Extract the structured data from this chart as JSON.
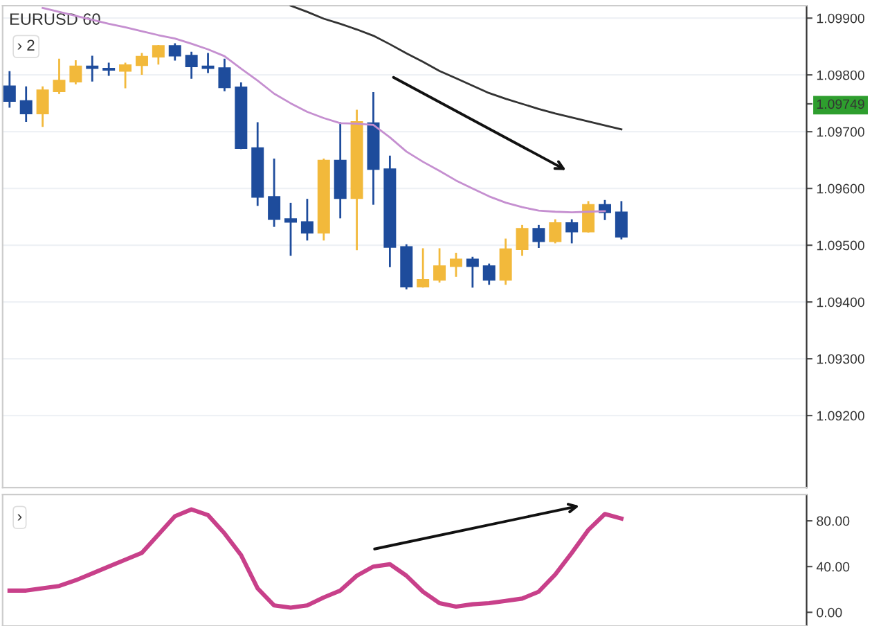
{
  "chart_data": [
    {
      "type": "candlestick",
      "title": "EURUSD 60",
      "categories": [
        null,
        null,
        null,
        null,
        null,
        null,
        null,
        null,
        null,
        null,
        null,
        null,
        null,
        null,
        null,
        null,
        null,
        null,
        null,
        null,
        null,
        null,
        null,
        null,
        null,
        null,
        null,
        null,
        null,
        null,
        null,
        null,
        null,
        null,
        null,
        null,
        null,
        null
      ],
      "ohlc": [
        [
          1.0978,
          1.09805,
          1.09744,
          1.09754
        ],
        [
          1.09754,
          1.09778,
          1.09719,
          1.09732
        ],
        [
          1.09732,
          1.09778,
          1.0971,
          1.09773
        ],
        [
          1.09771,
          1.09827,
          1.09768,
          1.0979
        ],
        [
          1.09788,
          1.09824,
          1.09785,
          1.09815
        ],
        [
          1.09815,
          1.09832,
          1.0979,
          1.09812
        ],
        [
          1.09811,
          1.0982,
          1.098,
          1.09809
        ],
        [
          1.09807,
          1.0982,
          1.09778,
          1.09817
        ],
        [
          1.09817,
          1.09837,
          1.09802,
          1.09832
        ],
        [
          1.09832,
          1.09851,
          1.0982,
          1.09851
        ],
        [
          1.09851,
          1.09854,
          1.09827,
          1.09834
        ],
        [
          1.09834,
          1.09839,
          1.09795,
          1.09815
        ],
        [
          1.09815,
          1.09837,
          1.09805,
          1.09812
        ],
        [
          1.09812,
          1.09827,
          1.09773,
          1.09778
        ],
        [
          1.09778,
          1.09785,
          1.09671,
          1.09671
        ],
        [
          1.09671,
          1.09715,
          1.09571,
          1.09585
        ],
        [
          1.09585,
          1.09651,
          1.09534,
          1.09546
        ],
        [
          1.09546,
          1.09573,
          1.09483,
          1.09541
        ],
        [
          1.09541,
          1.0958,
          1.0951,
          1.09522
        ],
        [
          1.09522,
          1.09651,
          1.0951,
          1.09649
        ],
        [
          1.09649,
          1.09715,
          1.09549,
          1.09583
        ],
        [
          1.09583,
          1.09737,
          1.09493,
          1.09717
        ],
        [
          1.09715,
          1.09768,
          1.09573,
          1.09634
        ],
        [
          1.09634,
          1.09656,
          1.09463,
          1.09497
        ],
        [
          1.09497,
          1.095,
          1.09424,
          1.09427
        ],
        [
          1.09427,
          1.09493,
          1.09427,
          1.09439
        ],
        [
          1.09439,
          1.09493,
          1.09436,
          1.09463
        ],
        [
          1.09463,
          1.09485,
          1.09446,
          1.09475
        ],
        [
          1.09475,
          1.09478,
          1.09427,
          1.09463
        ],
        [
          1.09463,
          1.09466,
          1.09432,
          1.09439
        ],
        [
          1.09439,
          1.0951,
          1.09432,
          1.09493
        ],
        [
          1.09493,
          1.09534,
          1.09483,
          1.09529
        ],
        [
          1.09529,
          1.09534,
          1.09497,
          1.09507
        ],
        [
          1.09507,
          1.09544,
          1.09505,
          1.09539
        ],
        [
          1.09539,
          1.09544,
          1.09505,
          1.09524
        ],
        [
          1.09524,
          1.09576,
          1.09524,
          1.09571
        ],
        [
          1.09571,
          1.09578,
          1.09546,
          1.09558
        ],
        [
          1.09558,
          1.09576,
          1.09512,
          1.09515
        ]
      ],
      "colors": [
        "#1e4c9c",
        "#1e4c9c",
        "#f2b93b",
        "#f2b93b",
        "#f2b93b",
        "#1e4c9c",
        "#1e4c9c",
        "#f2b93b",
        "#f2b93b",
        "#f2b93b",
        "#1e4c9c",
        "#1e4c9c",
        "#1e4c9c",
        "#1e4c9c",
        "#1e4c9c",
        "#1e4c9c",
        "#1e4c9c",
        "#1e4c9c",
        "#1e4c9c",
        "#f2b93b",
        "#1e4c9c",
        "#f2b93b",
        "#1e4c9c",
        "#1e4c9c",
        "#1e4c9c",
        "#f2b93b",
        "#f2b93b",
        "#f2b93b",
        "#1e4c9c",
        "#1e4c9c",
        "#f2b93b",
        "#f2b93b",
        "#1e4c9c",
        "#f2b93b",
        "#1e4c9c",
        "#f2b93b",
        "#1e4c9c",
        "#1e4c9c"
      ],
      "ylim": [
        1.09073,
        1.09922
      ],
      "yticks": [
        {
          "value": 1.092,
          "label": "1.09200"
        },
        {
          "value": 1.093,
          "label": "1.09300"
        },
        {
          "value": 1.094,
          "label": "1.09400"
        },
        {
          "value": 1.095,
          "label": "1.09500"
        },
        {
          "value": 1.096,
          "label": "1.09600"
        },
        {
          "value": 1.097,
          "label": "1.09700"
        },
        {
          "value": 1.09749,
          "label": "1.09749"
        },
        {
          "value": 1.098,
          "label": "1.09800"
        },
        {
          "value": 1.099,
          "label": "1.09900"
        }
      ],
      "annotations": [
        "› 2"
      ],
      "grid": "y",
      "tick_labels": "y",
      "series": [
        {
          "type": "line",
          "color": "#c58fd0",
          "values": [
            null,
            null,
            1.09918,
            1.09911,
            1.09904,
            1.09897,
            1.0989,
            1.09884,
            1.09877,
            1.0987,
            1.09864,
            1.09855,
            1.09845,
            1.09833,
            1.09811,
            1.0979,
            1.09767,
            1.0975,
            1.09735,
            1.09724,
            1.09715,
            1.09714,
            1.09712,
            1.0969,
            1.09665,
            1.09647,
            1.09631,
            1.09614,
            1.096,
            1.09586,
            1.09575,
            1.09567,
            1.09561,
            1.09559,
            1.09558,
            1.09559,
            1.0956,
            null
          ]
        },
        {
          "type": "line",
          "color": "#333333",
          "values": [
            null,
            null,
            null,
            null,
            null,
            null,
            null,
            null,
            null,
            null,
            null,
            null,
            null,
            null,
            null,
            null,
            null,
            1.09922,
            1.09911,
            1.09899,
            1.0989,
            1.0988,
            1.09869,
            1.09854,
            1.09838,
            1.09823,
            1.09807,
            1.09794,
            1.09781,
            1.09768,
            1.09758,
            1.09749,
            1.0974,
            1.09732,
            1.09725,
            1.09718,
            1.09711,
            1.09704
          ]
        }
      ]
    },
    {
      "type": "line",
      "categories": [
        null,
        null,
        null,
        null,
        null,
        null,
        null,
        null,
        null,
        null,
        null,
        null,
        null,
        null,
        null,
        null,
        null,
        null,
        null,
        null,
        null,
        null,
        null,
        null,
        null,
        null,
        null,
        null,
        null,
        null,
        null,
        null,
        null,
        null,
        null,
        null,
        null,
        null
      ],
      "series": [
        {
          "color": "#c8408a",
          "values": [
            19,
            19,
            21,
            23,
            28,
            34,
            40,
            46,
            52,
            68,
            84,
            90,
            85,
            69,
            50,
            21,
            6,
            4,
            6,
            13,
            19,
            32,
            40,
            42,
            32,
            18,
            8,
            5,
            7,
            8,
            10,
            12,
            18,
            33,
            52,
            72,
            86,
            82
          ]
        }
      ],
      "ylim": [
        -12,
        103
      ],
      "yticks": [
        {
          "value": 0,
          "label": "0.00"
        },
        {
          "value": 40,
          "label": "40.00"
        },
        {
          "value": 80,
          "label": "80.00"
        }
      ],
      "annotations": [
        "›"
      ],
      "tick_labels": "y"
    }
  ]
}
